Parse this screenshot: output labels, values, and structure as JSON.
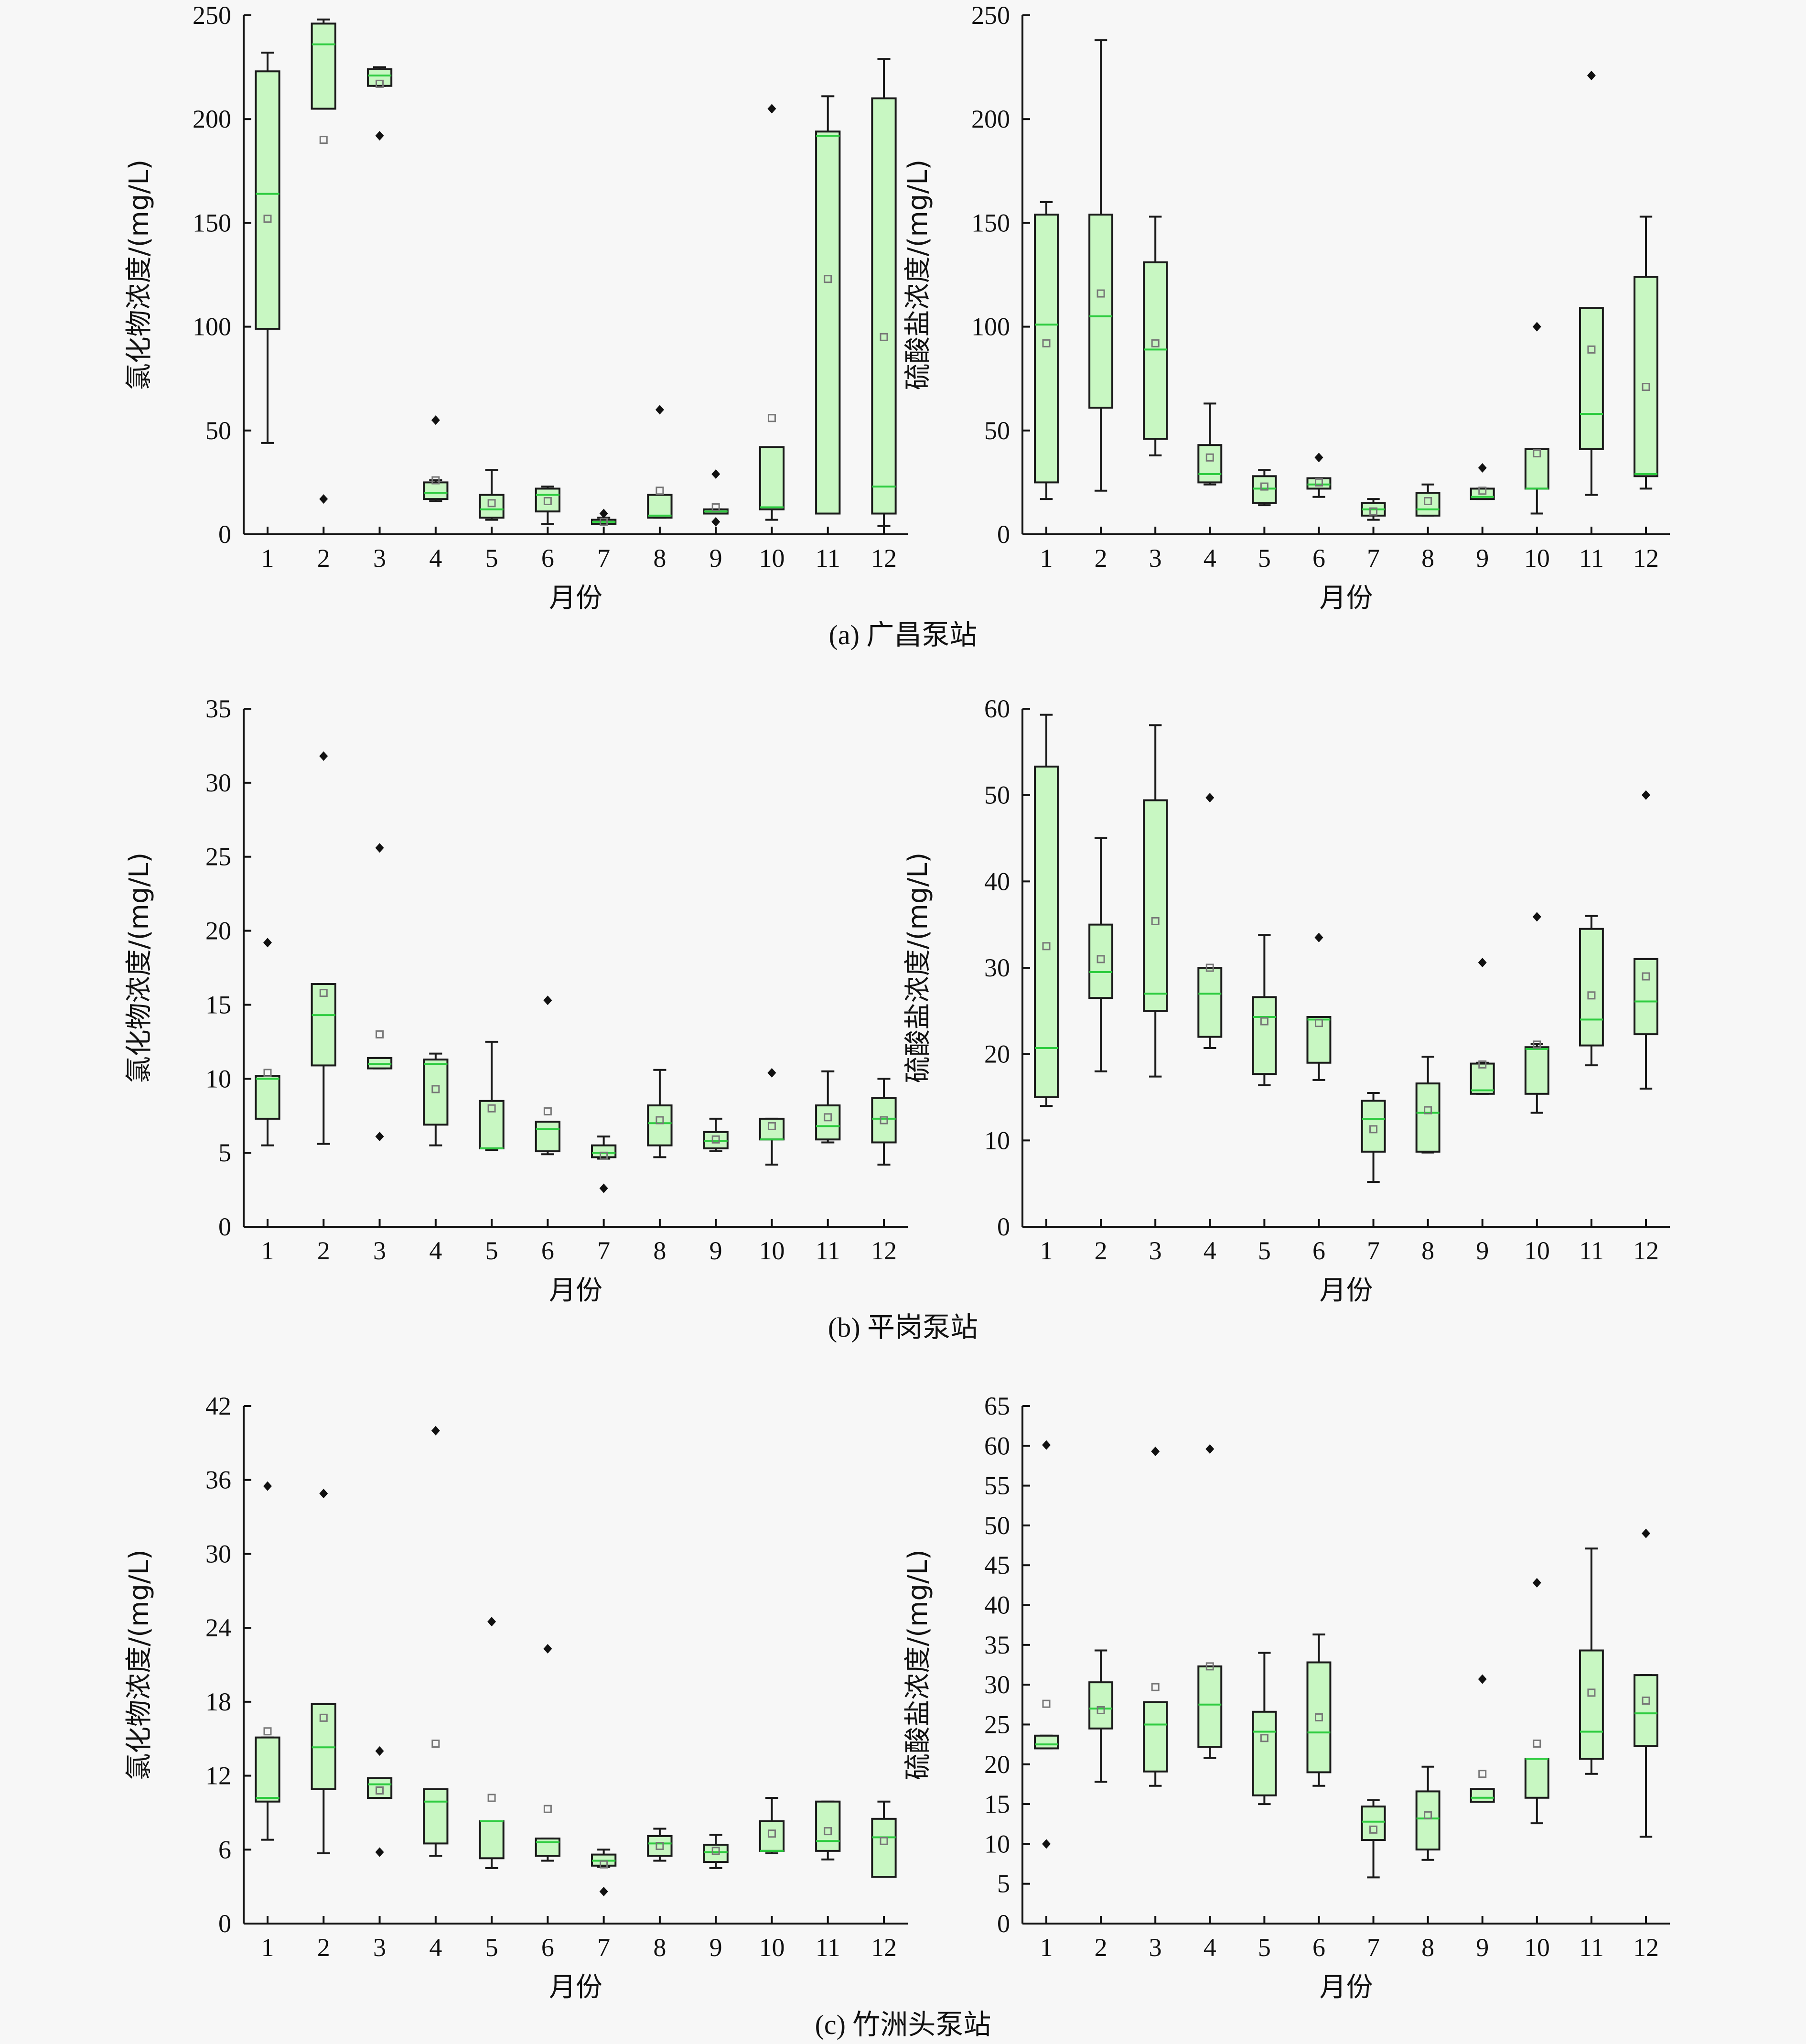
{
  "colors": {
    "box_fill": "#c8f7c2",
    "box_stroke": "#1a1a1a",
    "median": "#2ecc40",
    "mean_marker": "#777777",
    "outlier": "#111111",
    "background": "#f7f7f7"
  },
  "captions": [
    "(a) 广昌泵站",
    "(b) 平岗泵站",
    "(c) 竹洲头泵站"
  ],
  "chart_data": [
    {
      "type": "boxplot",
      "station": "广昌泵站",
      "xlabel": "月份",
      "ylabel": "氯化物浓度/(mg/L)",
      "ylim": [
        0,
        250
      ],
      "yticks": [
        0,
        50,
        100,
        150,
        200,
        250
      ],
      "categories": [
        "1",
        "2",
        "3",
        "4",
        "5",
        "6",
        "7",
        "8",
        "9",
        "10",
        "11",
        "12"
      ],
      "boxes": [
        {
          "lo": 44,
          "q1": 99,
          "med": 164,
          "q3": 223,
          "hi": 232,
          "mean": 152,
          "out": []
        },
        {
          "lo": 205,
          "q1": 205,
          "med": 236,
          "q3": 246,
          "hi": 248,
          "mean": 190,
          "out": [
            17
          ]
        },
        {
          "lo": 216,
          "q1": 216,
          "med": 221,
          "q3": 224,
          "hi": 225,
          "mean": 217,
          "out": [
            192
          ]
        },
        {
          "lo": 16,
          "q1": 17,
          "med": 20,
          "q3": 25,
          "hi": 26,
          "mean": 26,
          "out": [
            55
          ]
        },
        {
          "lo": 7,
          "q1": 8,
          "med": 12,
          "q3": 19,
          "hi": 31,
          "mean": 15,
          "out": []
        },
        {
          "lo": 5,
          "q1": 11,
          "med": 19,
          "q3": 22,
          "hi": 23,
          "mean": 16,
          "out": []
        },
        {
          "lo": 5,
          "q1": 5,
          "med": 6,
          "q3": 7,
          "hi": 8,
          "mean": 6,
          "out": [
            10
          ]
        },
        {
          "lo": 8,
          "q1": 8,
          "med": 9,
          "q3": 19,
          "hi": 19,
          "mean": 21,
          "out": [
            60
          ]
        },
        {
          "lo": 10,
          "q1": 10,
          "med": 11,
          "q3": 12,
          "hi": 12,
          "mean": 13,
          "out": [
            29,
            6
          ]
        },
        {
          "lo": 7,
          "q1": 12,
          "med": 13,
          "q3": 42,
          "hi": 42,
          "mean": 56,
          "out": [
            205
          ]
        },
        {
          "lo": 10,
          "q1": 10,
          "med": 192,
          "q3": 194,
          "hi": 211,
          "mean": 123,
          "out": []
        },
        {
          "lo": 4,
          "q1": 10,
          "med": 23,
          "q3": 210,
          "hi": 229,
          "mean": 95,
          "out": []
        }
      ]
    },
    {
      "type": "boxplot",
      "station": "广昌泵站",
      "xlabel": "月份",
      "ylabel": "硫酸盐浓度/(mg/L)",
      "ylim": [
        0,
        250
      ],
      "yticks": [
        0,
        50,
        100,
        150,
        200,
        250
      ],
      "categories": [
        "1",
        "2",
        "3",
        "4",
        "5",
        "6",
        "7",
        "8",
        "9",
        "10",
        "11",
        "12"
      ],
      "boxes": [
        {
          "lo": 17,
          "q1": 25,
          "med": 101,
          "q3": 154,
          "hi": 160,
          "mean": 92,
          "out": []
        },
        {
          "lo": 21,
          "q1": 61,
          "med": 105,
          "q3": 154,
          "hi": 238,
          "mean": 116,
          "out": []
        },
        {
          "lo": 38,
          "q1": 46,
          "med": 89,
          "q3": 131,
          "hi": 153,
          "mean": 92,
          "out": []
        },
        {
          "lo": 24,
          "q1": 25,
          "med": 29,
          "q3": 43,
          "hi": 63,
          "mean": 37,
          "out": []
        },
        {
          "lo": 14,
          "q1": 15,
          "med": 22,
          "q3": 28,
          "hi": 31,
          "mean": 23,
          "out": []
        },
        {
          "lo": 18,
          "q1": 22,
          "med": 24,
          "q3": 27,
          "hi": 27,
          "mean": 25,
          "out": [
            37
          ]
        },
        {
          "lo": 7,
          "q1": 9,
          "med": 12,
          "q3": 15,
          "hi": 17,
          "mean": 11,
          "out": []
        },
        {
          "lo": 9,
          "q1": 9,
          "med": 12,
          "q3": 20,
          "hi": 24,
          "mean": 16,
          "out": []
        },
        {
          "lo": 17,
          "q1": 17,
          "med": 18,
          "q3": 22,
          "hi": 22,
          "mean": 21,
          "out": [
            32
          ]
        },
        {
          "lo": 10,
          "q1": 22,
          "med": 22,
          "q3": 41,
          "hi": 41,
          "mean": 39,
          "out": [
            100
          ]
        },
        {
          "lo": 19,
          "q1": 41,
          "med": 58,
          "q3": 109,
          "hi": 109,
          "mean": 89,
          "out": [
            221
          ]
        },
        {
          "lo": 22,
          "q1": 28,
          "med": 29,
          "q3": 124,
          "hi": 153,
          "mean": 71,
          "out": []
        }
      ]
    },
    {
      "type": "boxplot",
      "station": "平岗泵站",
      "xlabel": "月份",
      "ylabel": "氯化物浓度/(mg/L)",
      "ylim": [
        0,
        35
      ],
      "yticks": [
        0,
        5,
        10,
        15,
        20,
        25,
        30,
        35
      ],
      "categories": [
        "1",
        "2",
        "3",
        "4",
        "5",
        "6",
        "7",
        "8",
        "9",
        "10",
        "11",
        "12"
      ],
      "boxes": [
        {
          "lo": 5.5,
          "q1": 7.3,
          "med": 10,
          "q3": 10.2,
          "hi": 10.2,
          "mean": 10.4,
          "out": [
            19.2
          ]
        },
        {
          "lo": 5.6,
          "q1": 10.9,
          "med": 14.3,
          "q3": 16.4,
          "hi": 16.4,
          "mean": 15.8,
          "out": [
            31.8
          ]
        },
        {
          "lo": 10.7,
          "q1": 10.7,
          "med": 11,
          "q3": 11.4,
          "hi": 11.4,
          "mean": 13,
          "out": [
            25.6,
            6.1
          ]
        },
        {
          "lo": 5.5,
          "q1": 6.9,
          "med": 11,
          "q3": 11.3,
          "hi": 11.7,
          "mean": 9.3,
          "out": []
        },
        {
          "lo": 5.2,
          "q1": 5.3,
          "med": 5.3,
          "q3": 8.5,
          "hi": 12.5,
          "mean": 8,
          "out": []
        },
        {
          "lo": 4.9,
          "q1": 5.1,
          "med": 6.6,
          "q3": 7.1,
          "hi": 7.1,
          "mean": 7.8,
          "out": [
            15.3
          ]
        },
        {
          "lo": 4.6,
          "q1": 4.7,
          "med": 5,
          "q3": 5.5,
          "hi": 6.1,
          "mean": 4.8,
          "out": [
            2.6
          ]
        },
        {
          "lo": 4.7,
          "q1": 5.5,
          "med": 7,
          "q3": 8.2,
          "hi": 10.6,
          "mean": 7.2,
          "out": []
        },
        {
          "lo": 5.1,
          "q1": 5.3,
          "med": 5.8,
          "q3": 6.4,
          "hi": 7.3,
          "mean": 5.9,
          "out": []
        },
        {
          "lo": 4.2,
          "q1": 5.9,
          "med": 5.9,
          "q3": 7.3,
          "hi": 7.3,
          "mean": 6.8,
          "out": [
            10.4
          ]
        },
        {
          "lo": 5.7,
          "q1": 5.9,
          "med": 6.8,
          "q3": 8.2,
          "hi": 10.5,
          "mean": 7.4,
          "out": []
        },
        {
          "lo": 4.2,
          "q1": 5.7,
          "med": 7.3,
          "q3": 8.7,
          "hi": 10,
          "mean": 7.2,
          "out": []
        }
      ]
    },
    {
      "type": "boxplot",
      "station": "平岗泵站",
      "xlabel": "月份",
      "ylabel": "硫酸盐浓度/(mg/L)",
      "ylim": [
        0,
        60
      ],
      "yticks": [
        0,
        10,
        20,
        30,
        40,
        50,
        60
      ],
      "categories": [
        "1",
        "2",
        "3",
        "4",
        "5",
        "6",
        "7",
        "8",
        "9",
        "10",
        "11",
        "12"
      ],
      "boxes": [
        {
          "lo": 14,
          "q1": 15,
          "med": 20.7,
          "q3": 53.3,
          "hi": 59.3,
          "mean": 32.5,
          "out": []
        },
        {
          "lo": 18,
          "q1": 26.5,
          "med": 29.5,
          "q3": 35,
          "hi": 45,
          "mean": 31,
          "out": []
        },
        {
          "lo": 17.4,
          "q1": 25,
          "med": 27,
          "q3": 49.4,
          "hi": 58.1,
          "mean": 35.4,
          "out": []
        },
        {
          "lo": 20.7,
          "q1": 22,
          "med": 27,
          "q3": 30,
          "hi": 30,
          "mean": 30,
          "out": [
            49.7
          ]
        },
        {
          "lo": 16.4,
          "q1": 17.7,
          "med": 24.3,
          "q3": 26.6,
          "hi": 33.8,
          "mean": 23.8,
          "out": []
        },
        {
          "lo": 17,
          "q1": 19,
          "med": 24,
          "q3": 24.3,
          "hi": 24.3,
          "mean": 23.6,
          "out": [
            33.5
          ]
        },
        {
          "lo": 5.2,
          "q1": 8.7,
          "med": 12.5,
          "q3": 14.6,
          "hi": 15.5,
          "mean": 11.3,
          "out": []
        },
        {
          "lo": 8.6,
          "q1": 8.7,
          "med": 13.2,
          "q3": 16.6,
          "hi": 19.7,
          "mean": 13.5,
          "out": []
        },
        {
          "lo": 15.4,
          "q1": 15.4,
          "med": 15.8,
          "q3": 18.9,
          "hi": 19,
          "mean": 18.8,
          "out": [
            30.6
          ]
        },
        {
          "lo": 13.2,
          "q1": 15.4,
          "med": 20.6,
          "q3": 20.8,
          "hi": 21.2,
          "mean": 21.1,
          "out": [
            35.9
          ]
        },
        {
          "lo": 18.7,
          "q1": 21,
          "med": 24,
          "q3": 34.5,
          "hi": 36,
          "mean": 26.8,
          "out": []
        },
        {
          "lo": 16,
          "q1": 22.3,
          "med": 26.1,
          "q3": 31,
          "hi": 31,
          "mean": 29,
          "out": [
            50
          ]
        }
      ]
    },
    {
      "type": "boxplot",
      "station": "竹洲头泵站",
      "xlabel": "月份",
      "ylabel": "氯化物浓度/(mg/L)",
      "ylim": [
        0,
        42
      ],
      "yticks": [
        0,
        6,
        12,
        18,
        24,
        30,
        36,
        42
      ],
      "categories": [
        "1",
        "2",
        "3",
        "4",
        "5",
        "6",
        "7",
        "8",
        "9",
        "10",
        "11",
        "12"
      ],
      "boxes": [
        {
          "lo": 6.8,
          "q1": 9.9,
          "med": 10.2,
          "q3": 15.1,
          "hi": 15.1,
          "mean": 15.6,
          "out": [
            35.5
          ]
        },
        {
          "lo": 5.7,
          "q1": 10.9,
          "med": 14.3,
          "q3": 17.8,
          "hi": 17.8,
          "mean": 16.7,
          "out": [
            34.9
          ]
        },
        {
          "lo": 10.2,
          "q1": 10.2,
          "med": 11.3,
          "q3": 11.8,
          "hi": 11.8,
          "mean": 10.8,
          "out": [
            14
          ],
          "lo_out": [
            5.8
          ]
        },
        {
          "lo": 5.5,
          "q1": 6.5,
          "med": 9.9,
          "q3": 10.9,
          "hi": 10.9,
          "mean": 14.6,
          "out": [
            40
          ]
        },
        {
          "lo": 4.5,
          "q1": 5.3,
          "med": 8.3,
          "q3": 8.3,
          "hi": 8.3,
          "mean": 10.2,
          "out": [
            24.5
          ]
        },
        {
          "lo": 5.1,
          "q1": 5.5,
          "med": 6.6,
          "q3": 6.9,
          "hi": 6.9,
          "mean": 9.3,
          "out": [
            22.3
          ]
        },
        {
          "lo": 4.6,
          "q1": 4.7,
          "med": 5.1,
          "q3": 5.6,
          "hi": 6,
          "mean": 4.8,
          "out": [
            2.6
          ]
        },
        {
          "lo": 5.1,
          "q1": 5.5,
          "med": 6.5,
          "q3": 7.1,
          "hi": 7.7,
          "mean": 6.3,
          "out": []
        },
        {
          "lo": 4.5,
          "q1": 5,
          "med": 5.8,
          "q3": 6.4,
          "hi": 7.2,
          "mean": 5.9,
          "out": []
        },
        {
          "lo": 5.7,
          "q1": 5.9,
          "med": 5.9,
          "q3": 8.3,
          "hi": 10.2,
          "mean": 7.3,
          "out": []
        },
        {
          "lo": 5.2,
          "q1": 5.9,
          "med": 6.7,
          "q3": 9.9,
          "hi": 9.9,
          "mean": 7.5,
          "out": []
        },
        {
          "lo": 3.8,
          "q1": 3.8,
          "med": 7,
          "q3": 8.5,
          "hi": 9.9,
          "mean": 6.7,
          "out": []
        }
      ]
    },
    {
      "type": "boxplot",
      "station": "竹洲头泵站",
      "xlabel": "月份",
      "ylabel": "硫酸盐浓度/(mg/L)",
      "ylim": [
        0,
        65
      ],
      "yticks": [
        0,
        5,
        10,
        15,
        20,
        25,
        30,
        35,
        40,
        45,
        50,
        55,
        60,
        65
      ],
      "categories": [
        "1",
        "2",
        "3",
        "4",
        "5",
        "6",
        "7",
        "8",
        "9",
        "10",
        "11",
        "12"
      ],
      "boxes": [
        {
          "lo": 22,
          "q1": 22,
          "med": 22.5,
          "q3": 23.6,
          "hi": 23.6,
          "mean": 27.6,
          "out": [
            60.1,
            10
          ]
        },
        {
          "lo": 17.8,
          "q1": 24.5,
          "med": 27,
          "q3": 30.3,
          "hi": 34.3,
          "mean": 26.8,
          "out": []
        },
        {
          "lo": 17.3,
          "q1": 19.1,
          "med": 25,
          "q3": 27.8,
          "hi": 27.8,
          "mean": 29.7,
          "out": [
            59.3
          ]
        },
        {
          "lo": 20.8,
          "q1": 22.2,
          "med": 27.5,
          "q3": 32.3,
          "hi": 32.3,
          "mean": 32.3,
          "out": [
            59.6
          ]
        },
        {
          "lo": 15,
          "q1": 16.1,
          "med": 24.1,
          "q3": 26.6,
          "hi": 34,
          "mean": 23.3,
          "out": []
        },
        {
          "lo": 17.3,
          "q1": 19,
          "med": 24,
          "q3": 32.8,
          "hi": 36.3,
          "mean": 25.9,
          "out": []
        },
        {
          "lo": 5.8,
          "q1": 10.5,
          "med": 12.8,
          "q3": 14.7,
          "hi": 15.5,
          "mean": 11.8,
          "out": []
        },
        {
          "lo": 8,
          "q1": 9.3,
          "med": 13.2,
          "q3": 16.6,
          "hi": 19.7,
          "mean": 13.6,
          "out": []
        },
        {
          "lo": 15.3,
          "q1": 15.3,
          "med": 15.8,
          "q3": 16.9,
          "hi": 16.9,
          "mean": 18.8,
          "out": [
            30.7
          ]
        },
        {
          "lo": 12.6,
          "q1": 15.8,
          "med": 20.7,
          "q3": 20.7,
          "hi": 20.7,
          "mean": 22.6,
          "out": [
            42.8
          ]
        },
        {
          "lo": 18.8,
          "q1": 20.7,
          "med": 24.1,
          "q3": 34.3,
          "hi": 47.1,
          "mean": 29,
          "out": []
        },
        {
          "lo": 10.9,
          "q1": 22.3,
          "med": 26.4,
          "q3": 31.2,
          "hi": 31.2,
          "mean": 28,
          "out": [
            49
          ]
        }
      ]
    }
  ]
}
